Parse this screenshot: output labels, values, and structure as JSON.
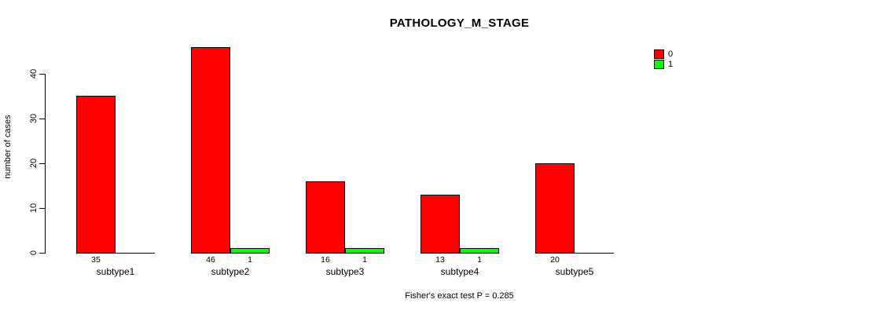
{
  "chart_data": {
    "type": "bar",
    "title": "PATHOLOGY_M_STAGE",
    "xlabel": "",
    "ylabel": "number of cases",
    "footnote": "Fisher's exact test P = 0.285",
    "categories": [
      "subtype1",
      "subtype2",
      "subtype3",
      "subtype4",
      "subtype5"
    ],
    "series": [
      {
        "name": "0",
        "color": "#ff0000",
        "values": [
          35,
          46,
          16,
          13,
          20
        ]
      },
      {
        "name": "1",
        "color": "#00ff00",
        "values": [
          0,
          1,
          1,
          1,
          0
        ]
      }
    ],
    "bar_labels": [
      [
        "35",
        "46",
        "16",
        "13",
        "20"
      ],
      [
        "",
        "1",
        "1",
        "1",
        ""
      ]
    ],
    "yticks": [
      0,
      10,
      20,
      30,
      40
    ],
    "ylim": [
      0,
      46
    ],
    "grid": false,
    "legend_position": "top-right",
    "legend": [
      {
        "label": "0",
        "color": "#ff0000"
      },
      {
        "label": "1",
        "color": "#00ff00"
      }
    ],
    "background_color": "#ffffff",
    "axis_color": "#000000"
  }
}
